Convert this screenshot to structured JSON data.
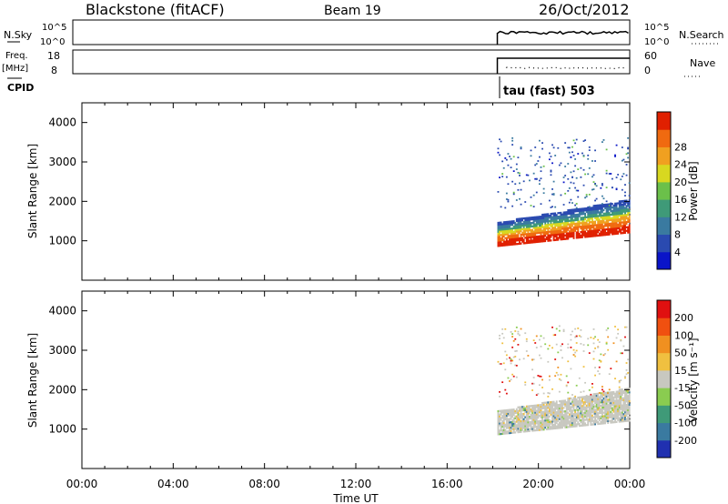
{
  "header": {
    "station": "Blackstone (fitACF)",
    "beam": "Beam 19",
    "date": "26/Oct/2012"
  },
  "strips": {
    "nsky": {
      "label": "N.Sky",
      "ticks": [
        "10^5",
        "10^0"
      ],
      "right_ticks": [
        "10^5",
        "10^0"
      ],
      "right_label": "N.Search"
    },
    "freq": {
      "label_top": "Freq.",
      "label_bottom": "[MHz]",
      "ticks": [
        "18",
        "8"
      ],
      "right_ticks": [
        "60",
        "0"
      ],
      "right_label": "Nave"
    },
    "cpid": {
      "label": "CPID",
      "program": "tau (fast) 503"
    }
  },
  "chart_data": [
    {
      "type": "heatmap",
      "title": "",
      "xlabel": "",
      "ylabel": "Slant Range [km]",
      "ylim": [
        0,
        4500
      ],
      "yticks": [
        1000,
        2000,
        3000,
        4000
      ],
      "xlim": [
        0,
        24
      ],
      "data_start_hour": 18.2,
      "colorbar": {
        "label": "Power [dB]",
        "ticks": [
          "4",
          "8",
          "12",
          "16",
          "20",
          "24",
          "28"
        ],
        "colors": [
          "#0a14c8",
          "#2a4ab0",
          "#3a7aa0",
          "#3f9a78",
          "#6bc04a",
          "#d8d820",
          "#f0a020",
          "#f06a10",
          "#e02000"
        ]
      }
    },
    {
      "type": "heatmap",
      "title": "",
      "xlabel": "Time UT",
      "ylabel": "Slant Range [km]",
      "ylim": [
        0,
        4500
      ],
      "yticks": [
        1000,
        2000,
        3000,
        4000
      ],
      "xlim": [
        0,
        24
      ],
      "data_start_hour": 18.2,
      "colorbar": {
        "label": "Velocity [m s⁻¹]",
        "ticks": [
          "200",
          "100",
          "50",
          "15",
          "-15",
          "-50",
          "-100",
          "-200"
        ],
        "colors": [
          "#2030b0",
          "#3a7aa0",
          "#3f9a78",
          "#8acc50",
          "#c8c8c0",
          "#f0c040",
          "#f09020",
          "#f05010",
          "#e01010"
        ]
      }
    }
  ],
  "xaxis": {
    "ticks": [
      "00:00",
      "04:00",
      "08:00",
      "12:00",
      "16:00",
      "20:00",
      "00:00"
    ],
    "label": "Time UT"
  }
}
